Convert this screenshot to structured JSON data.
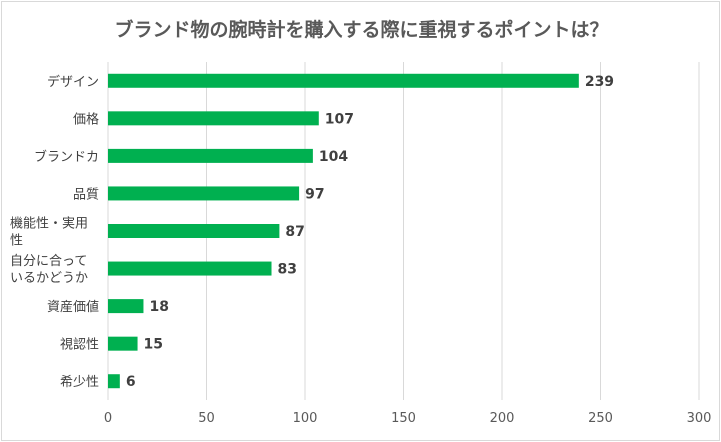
{
  "chart_data": {
    "type": "bar",
    "orientation": "horizontal",
    "title": "ブランド物の腕時計を購入する際に重視するポイントは？",
    "categories": [
      [
        "デザイン"
      ],
      [
        "価格"
      ],
      [
        "ブランドカ"
      ],
      [
        "品質"
      ],
      [
        "機能性・実用",
        "性"
      ],
      [
        "自分に合って",
        "いるかどうか"
      ],
      [
        "資産価値"
      ],
      [
        "視認性"
      ],
      [
        "希少性"
      ]
    ],
    "values": [
      239,
      107,
      104,
      97,
      87,
      83,
      18,
      15,
      6
    ],
    "xlim": [
      0,
      300
    ],
    "xticks": [
      0,
      50,
      100,
      150,
      200,
      250,
      300
    ],
    "grid": true,
    "data_labels": true,
    "bar_color": "#00b050",
    "grid_color": "#d9d9d9"
  }
}
